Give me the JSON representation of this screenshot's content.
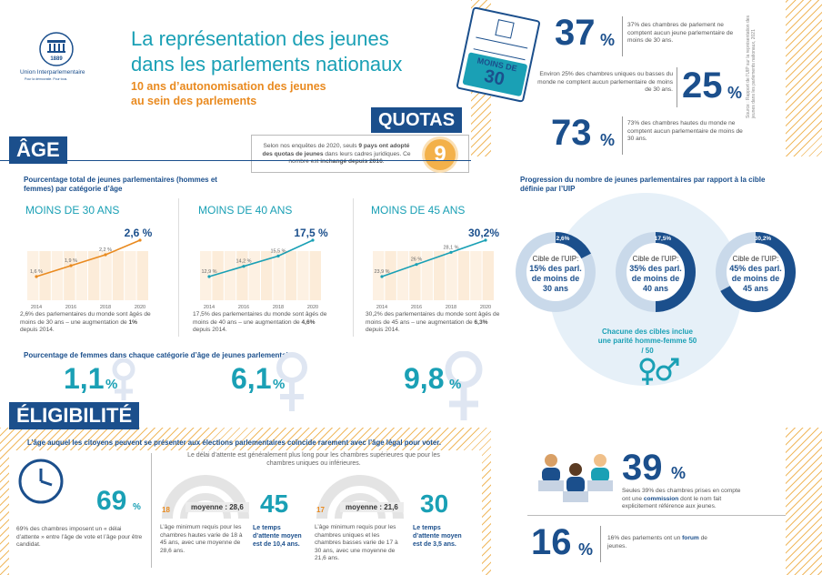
{
  "header": {
    "org_name": "Union Interparlementaire",
    "org_tagline": "Pour la démocratie. Pour tous.",
    "logo_year": "1889",
    "title_line1": "La représentation des jeunes",
    "title_line2": "dans les parlements nationaux",
    "subtitle_line1": "10 ans d’autonomisation des jeunes",
    "subtitle_line2": "au sein des parlements",
    "badge_text": "MOINS DE",
    "badge_number": "30"
  },
  "stats_top": [
    {
      "value": "37",
      "unit": "%",
      "text": "37% des chambres de parlement ne comptent aucun jeune parlementaire de moins de 30 ans."
    },
    {
      "value": "25",
      "unit": "%",
      "text": "Environ 25% des chambres uniques ou basses du monde ne comptent aucun parlementaire de moins de 30 ans."
    },
    {
      "value": "73",
      "unit": "%",
      "text": "73% des chambres hautes du monde ne comptent aucun parlementaire de moins de 30 ans."
    }
  ],
  "source_note": "Source : Rapport de l’UIP sur la représentation des jeunes dans les parlements nationaux, 2021",
  "quotas": {
    "label": "QUOTAS",
    "text_a": "Selon nos enquêtes de 2020, seuls ",
    "text_b": "9 pays ont adopté des quotas de jeunes",
    "text_c": " dans leurs cadres juridiques. Ce nombre est ",
    "text_d": "inchangé depuis 2016",
    "text_e": ".",
    "number": "9"
  },
  "age": {
    "label": "ÂGE",
    "charts_title": "Pourcentage total de jeunes parlementaires (hommes et femmes) par catégorie d’âge",
    "women_title": "Pourcentage de femmes dans chaque catégorie d’âge de jeunes parlementaires",
    "panels": [
      {
        "title": "MOINS DE 30 ANS",
        "headline": "2,6 %",
        "note_a": "2,6% des parlementaires du monde sont âgés de moins de 30 ans – une augmentation de ",
        "note_b": "1%",
        "note_c": " depuis 2014.",
        "women_value": "1,1",
        "women_unit": "%"
      },
      {
        "title": "MOINS DE 40 ANS",
        "headline": "17,5 %",
        "note_a": "17,5% des parlementaires du monde sont âgés de moins de 40 ans – une augmentation de ",
        "note_b": "4,6%",
        "note_c": " depuis 2014.",
        "women_value": "6,1",
        "women_unit": "%"
      },
      {
        "title": "MOINS DE 45 ANS",
        "headline": "30,2%",
        "note_a": "30,2% des parlementaires du monde sont âgés de moins de 45 ans – une augmentation de ",
        "note_b": "6,3%",
        "note_c": " depuis 2014.",
        "women_value": "9,8",
        "women_unit": "%"
      }
    ]
  },
  "chart_data": [
    {
      "type": "line",
      "title": "MOINS DE 30 ANS",
      "x": [
        "2014",
        "2016",
        "2018",
        "2020"
      ],
      "series": [
        {
          "values": [
            1.6,
            1.9,
            2.2,
            2.6
          ],
          "labels": [
            "1,6 %",
            "1,9 %",
            "2,2 %",
            "2,6 %"
          ]
        }
      ],
      "color": "#e98a1f"
    },
    {
      "type": "line",
      "title": "MOINS DE 40 ANS",
      "x": [
        "2014",
        "2016",
        "2018",
        "2020"
      ],
      "series": [
        {
          "values": [
            12.9,
            14.2,
            15.5,
            17.5
          ],
          "labels": [
            "12,9 %",
            "14,2 %",
            "15,5 %",
            "17,5 %"
          ]
        }
      ],
      "color": "#1aa0b5"
    },
    {
      "type": "line",
      "title": "MOINS DE 45 ANS",
      "x": [
        "2014",
        "2016",
        "2018",
        "2020"
      ],
      "series": [
        {
          "values": [
            23.9,
            26.0,
            28.1,
            30.2
          ],
          "labels": [
            "23,9 %",
            "26 %",
            "28,1 %",
            "30,2 %"
          ]
        }
      ],
      "color": "#1aa0b5"
    },
    {
      "type": "pie",
      "title": "Progression du nombre de jeunes parlementaires par rapport à la cible définie par l’UIP",
      "rings": [
        {
          "label": "2,6%",
          "value": 2.6,
          "target": 15,
          "text_a": "Cible de l’UIP:",
          "text_b": "15% des parl.",
          "text_c": "de moins de",
          "text_d": "30 ans"
        },
        {
          "label": "17,5%",
          "value": 17.5,
          "target": 35,
          "text_a": "Cible de l’UIP:",
          "text_b": "35% des parl.",
          "text_c": "de moins de",
          "text_d": "40 ans"
        },
        {
          "label": "30,2%",
          "value": 30.2,
          "target": 45,
          "text_a": "Cible de l’UIP:",
          "text_b": "45% des parl.",
          "text_c": "de moins de",
          "text_d": "45 ans"
        }
      ],
      "note": "Chacune des cibles inclue une parité homme-femme 50 / 50"
    }
  ],
  "eligibility": {
    "label": "ÉLIGIBILITÉ",
    "intro": "L’âge auquel les citoyens peuvent se présenter aux élections parlementaires coïncide rarement avec l’âge légal pour voter.",
    "clock_value": "69",
    "clock_unit": "%",
    "clock_text": "69% des chambres imposent un « délai d’attente » entre l’âge de vote et l’âge pour être candidat.",
    "wait_intro": "Le délai d’attente est généralement plus long pour les chambres supérieures que pour les chambres uniques ou inférieures.",
    "upper": {
      "min": "18",
      "avg_label": "moyenne : 28,6",
      "value": "45",
      "text": "L’âge minimum requis pour les chambres hautes varie de 18 à 45 ans, avec une moyenne de 28,6 ans.",
      "wait": "Le temps d’attente moyen est de 10,4 ans."
    },
    "lower": {
      "min": "17",
      "avg_label": "moyenne : 21,6",
      "value": "30",
      "text": "L’âge minimum requis pour les chambres uniques et les chambres basses varie de 17 à 30 ans, avec une moyenne de 21,6 ans.",
      "wait": "Le temps d’attente moyen est de 3,5 ans."
    }
  },
  "stats_bottom": [
    {
      "value": "39",
      "unit": "%",
      "text_a": "Seules 39% des chambres prises en compte ont une ",
      "text_b": "commission",
      "text_c": " dont le nom fait explicitement référence aux jeunes."
    },
    {
      "value": "16",
      "unit": "%",
      "text_a": "16% des parlements ont un ",
      "text_b": "forum",
      "text_c": " de jeunes."
    }
  ],
  "colors": {
    "navy": "#1b4f8c",
    "teal": "#1aa0b5",
    "orange": "#e98a1f",
    "stripe": "#f0b960",
    "ring": "#c9d9ea"
  }
}
